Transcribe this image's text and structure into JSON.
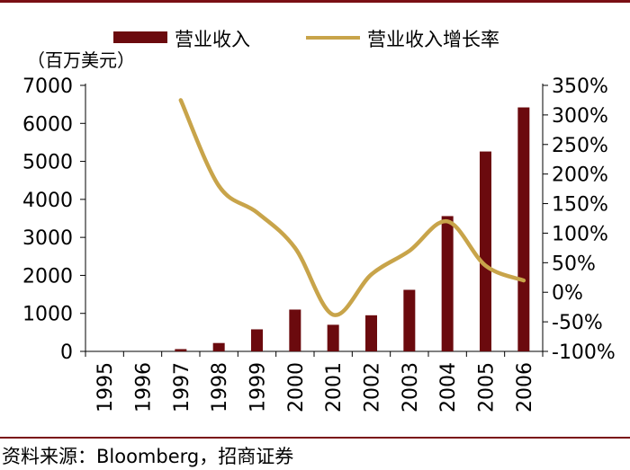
{
  "chart_data": {
    "type": "bar+line",
    "unit_label": "（百万美元）",
    "categories": [
      "1995",
      "1996",
      "1997",
      "1998",
      "1999",
      "2000",
      "2001",
      "2002",
      "2003",
      "2004",
      "2005",
      "2006"
    ],
    "series": [
      {
        "name": "营业收入",
        "type": "bar",
        "axis": "left",
        "color": "#6b0a0e",
        "values": [
          0,
          0,
          60,
          220,
          580,
          1100,
          700,
          950,
          1620,
          3560,
          5260,
          6420
        ]
      },
      {
        "name": "营业收入增长率",
        "type": "line",
        "axis": "right",
        "color": "#c8a44a",
        "values": [
          null,
          null,
          325,
          180,
          135,
          75,
          -38,
          30,
          70,
          120,
          45,
          20
        ]
      }
    ],
    "left_axis": {
      "min": 0,
      "max": 7000,
      "ticks": [
        0,
        1000,
        2000,
        3000,
        4000,
        5000,
        6000,
        7000
      ]
    },
    "right_axis": {
      "min": -100,
      "max": 350,
      "ticks": [
        -100,
        -50,
        0,
        50,
        100,
        150,
        200,
        250,
        300,
        350
      ],
      "tick_labels": [
        "-100%",
        "-50%",
        "0%",
        "50%",
        "100%",
        "150%",
        "200%",
        "250%",
        "300%",
        "350%"
      ]
    },
    "legend_position": "top",
    "grid": false
  },
  "source_text": "资料来源：Bloomberg，招商证券"
}
